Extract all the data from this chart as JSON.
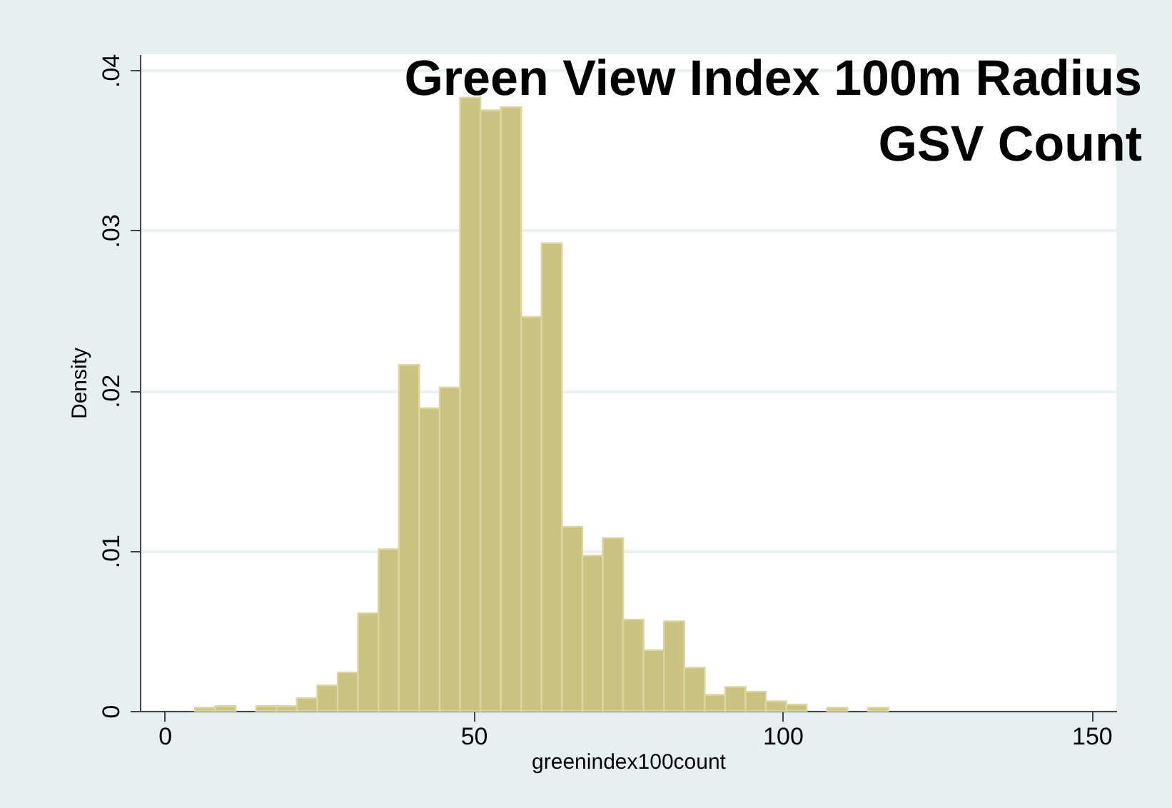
{
  "chart_data": {
    "type": "histogram",
    "title": "Green View Index 100m Radius\nGSV Count",
    "xlabel": "greenindex100count",
    "ylabel": "Density",
    "bins": [
      4.9,
      8.2,
      11.5,
      14.8,
      18.1,
      21.4,
      24.7,
      28,
      31.3,
      34.6,
      37.9,
      41.2,
      44.5,
      47.8,
      51.1,
      54.4,
      57.7,
      61,
      64.3,
      67.6,
      70.9,
      74.2,
      77.5,
      80.8,
      84.1,
      87.4,
      90.7,
      94,
      97.3,
      100.6,
      103.9,
      107.2,
      110.5,
      113.8,
      117.1
    ],
    "values": [
      0.0002,
      0.0003,
      0,
      0.0003,
      0.0003,
      0.0008,
      0.0016,
      0.0024,
      0.0061,
      0.0101,
      0.0216,
      0.0189,
      0.0202,
      0.0383,
      0.0375,
      0.0377,
      0.0246,
      0.0292,
      0.0115,
      0.0097,
      0.0108,
      0.0057,
      0.0038,
      0.0056,
      0.0027,
      0.001,
      0.0015,
      0.0012,
      0.0006,
      0.0004,
      0,
      0.0002,
      0,
      0.0002
    ],
    "color": "#cbc281",
    "xlim": [
      -4,
      154
    ],
    "xticks": [
      0,
      50,
      100,
      150
    ],
    "ylim": [
      0,
      0.041
    ],
    "yticks": [
      {
        "value": 0,
        "label": "0"
      },
      {
        "value": 0.01,
        "label": ".01"
      },
      {
        "value": 0.02,
        "label": ".02"
      },
      {
        "value": 0.03,
        "label": ".03"
      },
      {
        "value": 0.04,
        "label": ".04"
      }
    ],
    "grid": "y"
  }
}
